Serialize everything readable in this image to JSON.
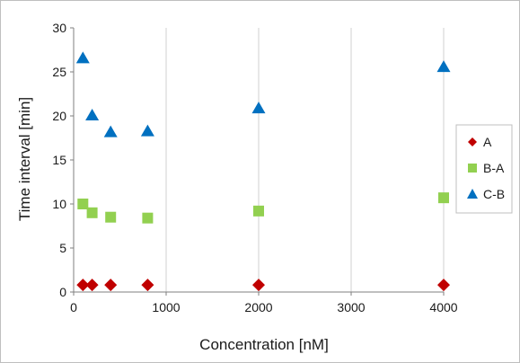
{
  "chart_data": {
    "type": "scatter",
    "xlabel": "Concentration [nM]",
    "ylabel": "Time interval [min]",
    "xlim": [
      0,
      4000
    ],
    "ylim": [
      0,
      30
    ],
    "xticks": [
      0,
      1000,
      2000,
      3000,
      4000
    ],
    "yticks": [
      0,
      5,
      10,
      15,
      20,
      25,
      30
    ],
    "grid": "x-vertical",
    "legend_position": "right",
    "series": [
      {
        "name": "A",
        "marker": "diamond",
        "color": "#c00000",
        "points": [
          [
            100,
            0.8
          ],
          [
            200,
            0.8
          ],
          [
            400,
            0.8
          ],
          [
            800,
            0.8
          ],
          [
            2000,
            0.8
          ],
          [
            4000,
            0.8
          ]
        ]
      },
      {
        "name": "B-A",
        "marker": "square",
        "color": "#92d050",
        "points": [
          [
            100,
            10.0
          ],
          [
            200,
            9.0
          ],
          [
            400,
            8.5
          ],
          [
            800,
            8.4
          ],
          [
            2000,
            9.2
          ],
          [
            4000,
            10.7
          ]
        ]
      },
      {
        "name": "C-B",
        "marker": "triangle",
        "color": "#0070c0",
        "points": [
          [
            100,
            26.6
          ],
          [
            200,
            20.1
          ],
          [
            400,
            18.2
          ],
          [
            800,
            18.3
          ],
          [
            2000,
            20.9
          ],
          [
            4000,
            25.6
          ]
        ]
      }
    ]
  }
}
